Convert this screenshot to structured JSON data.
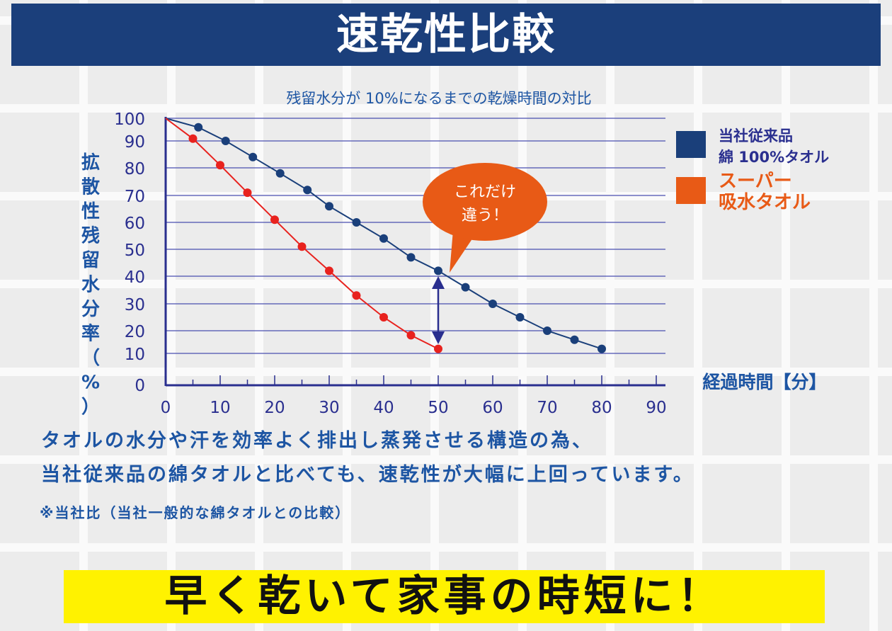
{
  "header": {
    "title": "速乾性比較"
  },
  "chart_data": {
    "type": "line",
    "title": "残留水分が 10%になるまでの乾燥時間の対比",
    "xlabel": "経過時間【分】",
    "ylabel": "拡散性残留水分率（%）",
    "xlim": [
      0,
      90
    ],
    "ylim": [
      0,
      100
    ],
    "x_ticks": [
      "0",
      "10",
      "20",
      "30",
      "40",
      "50",
      "60",
      "70",
      "80",
      "90"
    ],
    "y_ticks": [
      "0",
      "10",
      "20",
      "30",
      "40",
      "50",
      "60",
      "70",
      "80",
      "90",
      "100"
    ],
    "grid": "horizontal",
    "legend_position": "right",
    "series": [
      {
        "name": "当社従来品 綿 100%タオル",
        "legend_lines": [
          "当社従来品",
          "綿 100%タオル"
        ],
        "color": "#1a3f7a",
        "x": [
          0,
          6,
          11,
          16,
          21,
          26,
          30,
          35,
          40,
          45,
          50,
          55,
          60,
          65,
          70,
          75,
          80
        ],
        "y": [
          100,
          96,
          90,
          84,
          78,
          72,
          66,
          60,
          54,
          47,
          42,
          36,
          30,
          25,
          20,
          16,
          12
        ]
      },
      {
        "name": "スーパー 吸水タオル",
        "legend_lines": [
          "スーパー",
          "吸水タオル"
        ],
        "color": "#e8221e",
        "legend_color": "#e85a16",
        "x": [
          0,
          5,
          10,
          15,
          20,
          25,
          30,
          35,
          40,
          45,
          50
        ],
        "y": [
          100,
          91,
          81,
          71,
          61,
          51,
          42,
          33,
          25,
          18,
          12
        ]
      }
    ],
    "annotation": {
      "lines": [
        "これだけ",
        "違う！"
      ],
      "color": "#e85a16",
      "arrow_at_x": 50
    }
  },
  "body_text": {
    "line1": "タオルの水分や汗を効率よく排出し蒸発させる構造の為、",
    "line2": "当社従来品の綿タオルと比べても、速乾性が大幅に上回っています。",
    "note": "※当社比（当社一般的な綿タオルとの比較）"
  },
  "banner": {
    "text": "早く乾いて家事の時短に！"
  }
}
